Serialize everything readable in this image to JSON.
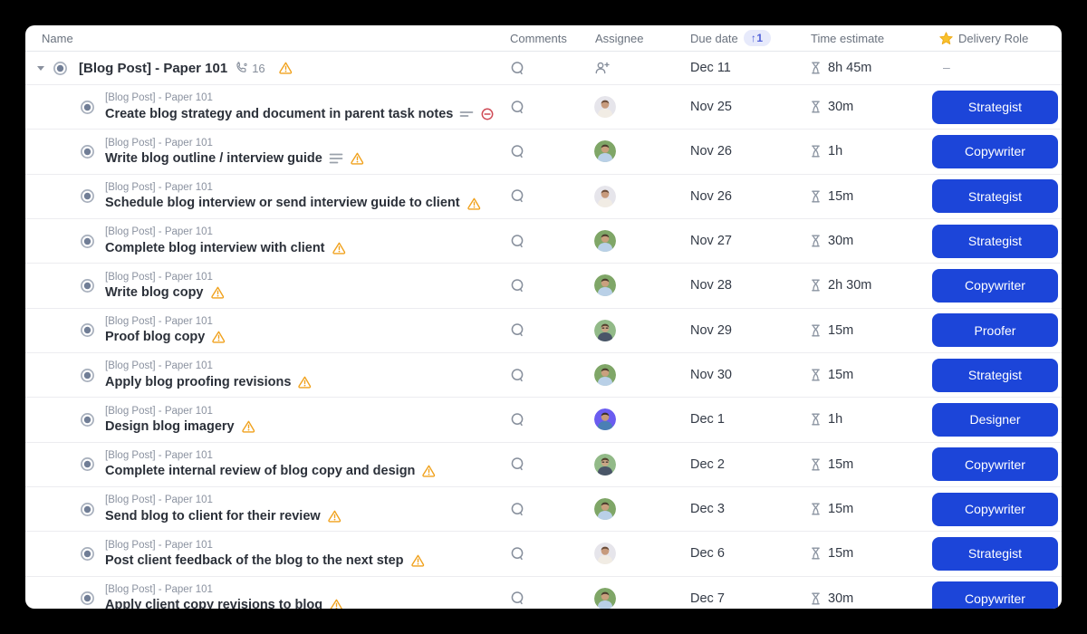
{
  "header": {
    "name": "Name",
    "comments": "Comments",
    "assignee": "Assignee",
    "due_date": "Due date",
    "sort_badge": "↑1",
    "time_estimate": "Time estimate",
    "delivery_role": "Delivery Role"
  },
  "parent_task": {
    "title": "[Blog Post] - Paper 101",
    "linked_count": "16",
    "due_date": "Dec 11",
    "time_estimate": "8h 45m",
    "delivery_role": "–"
  },
  "subtask_breadcrumb": "[Blog Post] - Paper 101",
  "rows": [
    {
      "title": "Create blog strategy and document in parent task notes",
      "icons": [
        "notes2",
        "blocked"
      ],
      "avatar": "a",
      "due": "Nov 25",
      "time": "30m",
      "role": "Strategist"
    },
    {
      "title": "Write blog outline / interview guide",
      "icons": [
        "notes3",
        "warning"
      ],
      "avatar": "b",
      "due": "Nov 26",
      "time": "1h",
      "role": "Copywriter"
    },
    {
      "title": "Schedule blog interview or send interview guide to client",
      "icons": [
        "warning"
      ],
      "avatar": "a",
      "due": "Nov 26",
      "time": "15m",
      "role": "Strategist"
    },
    {
      "title": "Complete blog interview with client",
      "icons": [
        "warning"
      ],
      "avatar": "b",
      "due": "Nov 27",
      "time": "30m",
      "role": "Strategist"
    },
    {
      "title": "Write blog copy",
      "icons": [
        "warning"
      ],
      "avatar": "b",
      "due": "Nov 28",
      "time": "2h 30m",
      "role": "Copywriter"
    },
    {
      "title": "Proof blog copy",
      "icons": [
        "warning"
      ],
      "avatar": "c",
      "due": "Nov 29",
      "time": "15m",
      "role": "Proofer"
    },
    {
      "title": "Apply blog proofing revisions",
      "icons": [
        "warning"
      ],
      "avatar": "b",
      "due": "Nov 30",
      "time": "15m",
      "role": "Strategist"
    },
    {
      "title": "Design blog imagery",
      "icons": [
        "warning"
      ],
      "avatar": "d",
      "due": "Dec 1",
      "time": "1h",
      "role": "Designer"
    },
    {
      "title": "Complete internal review of blog copy and design",
      "icons": [
        "warning"
      ],
      "avatar": "c",
      "due": "Dec 2",
      "time": "15m",
      "role": "Copywriter"
    },
    {
      "title": "Send blog to client for their review",
      "icons": [
        "warning"
      ],
      "avatar": "b",
      "due": "Dec 3",
      "time": "15m",
      "role": "Copywriter"
    },
    {
      "title": "Post client feedback of the blog to the next step",
      "icons": [
        "warning"
      ],
      "avatar": "a",
      "due": "Dec 6",
      "time": "15m",
      "role": "Strategist"
    },
    {
      "title": "Apply client copy revisions to blog",
      "icons": [
        "warning"
      ],
      "avatar": "b",
      "due": "Dec 7",
      "time": "30m",
      "role": "Copywriter"
    }
  ],
  "icon_names": {
    "caret": "chevron-down",
    "status": "status-ring-circle",
    "comment": "speech-bubble-outline",
    "assign": "person-add",
    "phone": "phone-receiver",
    "warning": "warning-triangle",
    "blocked": "blocked-circle-minus",
    "notes": "description-lines",
    "hourglass": "hourglass",
    "star": "star-filled",
    "sort_arrow": "↑"
  },
  "colors": {
    "button_blue": "#1c45d9",
    "warning_orange": "#f0a11c",
    "blocked_red": "#cf4a55",
    "badge_bg": "#e7eafb",
    "badge_text": "#4f5fd7",
    "star_gold": "#f8c12c",
    "status_ring": "#a7afbc",
    "status_dot": "#717e96",
    "icon_gray": "#8a93a0",
    "title_text": "#2b3039",
    "muted_text": "#8b92a0"
  },
  "avatars": {
    "a": {
      "bg": "#e6e5eb",
      "skin": "#c79b7d",
      "hair": "#6b4c38",
      "shirt": "#f1ece4"
    },
    "b": {
      "bg": "#7fa667",
      "skin": "#c9a07e",
      "hair": "#4a3a2c",
      "shirt": "#b9d0e7"
    },
    "c": {
      "bg": "#92ba88",
      "skin": "#c9a585",
      "hair": "#53402e",
      "shirt": "#4a5668"
    },
    "d": {
      "bg": "#6a5cf0",
      "skin": "#c59a78",
      "hair": "#3a2e24",
      "shirt": "#4a7fb5"
    }
  }
}
